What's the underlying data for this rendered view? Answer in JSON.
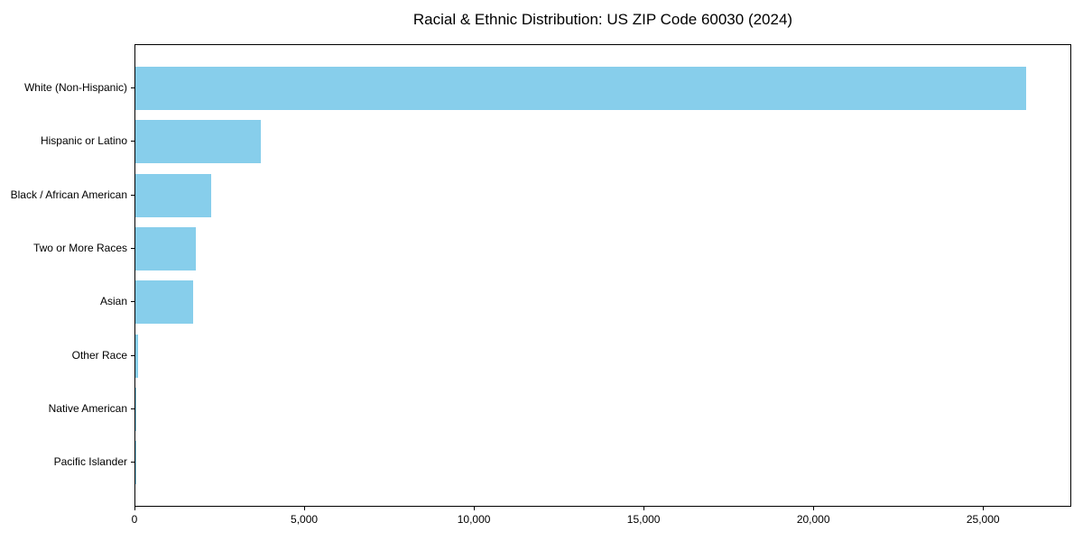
{
  "title": "Racial & Ethnic Distribution: US ZIP Code 60030 (2024)",
  "chart_data": {
    "type": "bar",
    "orientation": "horizontal",
    "title": "Racial & Ethnic Distribution: US ZIP Code 60030 (2024)",
    "xlabel": "",
    "ylabel": "",
    "categories": [
      "White (Non-Hispanic)",
      "Hispanic or Latino",
      "Black / African American",
      "Two or More Races",
      "Asian",
      "Other Race",
      "Native American",
      "Pacific Islander"
    ],
    "values": [
      26250,
      3690,
      2225,
      1775,
      1710,
      80,
      10,
      5
    ],
    "xlim": [
      0,
      27600
    ],
    "x_ticks": [
      0,
      5000,
      10000,
      15000,
      20000,
      25000
    ],
    "x_tick_labels": [
      "0",
      "5,000",
      "10,000",
      "15,000",
      "20,000",
      "25,000"
    ],
    "bar_color": "#87CEEB",
    "axis_color": "#000000",
    "text_color": "#000000",
    "grid": false,
    "legend": false
  }
}
